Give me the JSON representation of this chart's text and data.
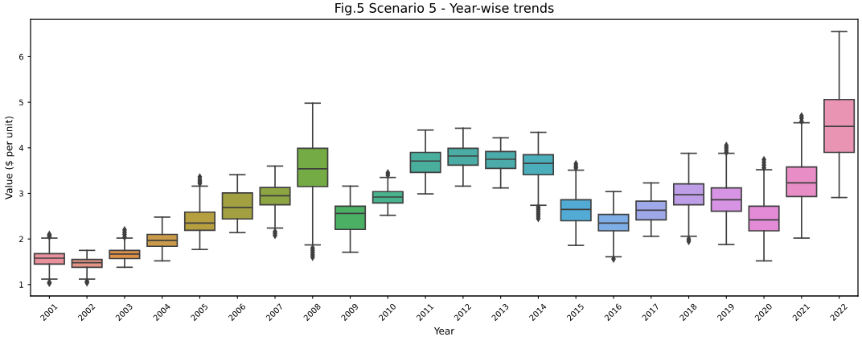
{
  "chart_data": {
    "type": "box",
    "title": "Fig.5 Scenario 5 - Year-wise trends",
    "xlabel": "Year",
    "ylabel": "Value ($ per unit)",
    "categories": [
      "2001",
      "2002",
      "2003",
      "2004",
      "2005",
      "2006",
      "2007",
      "2008",
      "2009",
      "2010",
      "2011",
      "2012",
      "2013",
      "2014",
      "2015",
      "2016",
      "2017",
      "2018",
      "2019",
      "2020",
      "2021",
      "2022"
    ],
    "colors": [
      "#e8919c",
      "#e59487",
      "#dc9048",
      "#c99b4a",
      "#b59f40",
      "#a2a040",
      "#8ea543",
      "#74ab45",
      "#4bb064",
      "#49b38e",
      "#49ae9c",
      "#4aaca4",
      "#4babab",
      "#4caeba",
      "#52abd4",
      "#7faee6",
      "#9fa8e8",
      "#bf9ee8",
      "#d794e4",
      "#e48bd8",
      "#e88dc6",
      "#e894b2"
    ],
    "boxes": [
      {
        "low": 1.12,
        "q1": 1.45,
        "median": 1.58,
        "q3": 1.68,
        "high": 2.02,
        "outliers": [
          2.05,
          2.08,
          2.1,
          1.03,
          1.05
        ]
      },
      {
        "low": 1.12,
        "q1": 1.38,
        "median": 1.48,
        "q3": 1.55,
        "high": 1.75,
        "outliers": [
          1.04,
          1.07
        ]
      },
      {
        "low": 1.38,
        "q1": 1.57,
        "median": 1.67,
        "q3": 1.75,
        "high": 2.02,
        "outliers": [
          2.04,
          2.1,
          2.15,
          2.2
        ]
      },
      {
        "low": 1.52,
        "q1": 1.84,
        "median": 1.97,
        "q3": 2.1,
        "high": 2.48
      },
      {
        "low": 1.77,
        "q1": 2.19,
        "median": 2.35,
        "q3": 2.59,
        "high": 3.16,
        "outliers": [
          3.22,
          3.26,
          3.3,
          3.36
        ]
      },
      {
        "low": 2.14,
        "q1": 2.44,
        "median": 2.69,
        "q3": 3.01,
        "high": 3.41
      },
      {
        "low": 2.24,
        "q1": 2.75,
        "median": 2.95,
        "q3": 3.13,
        "high": 3.6,
        "outliers": [
          2.08,
          2.12,
          2.16
        ]
      },
      {
        "low": 1.87,
        "q1": 3.15,
        "median": 3.54,
        "q3": 3.99,
        "high": 4.98,
        "outliers": [
          1.6,
          1.65,
          1.7,
          1.75,
          1.8
        ]
      },
      {
        "low": 1.71,
        "q1": 2.21,
        "median": 2.56,
        "q3": 2.72,
        "high": 3.16
      },
      {
        "low": 2.52,
        "q1": 2.79,
        "median": 2.92,
        "q3": 3.04,
        "high": 3.35,
        "outliers": [
          3.4,
          3.45
        ]
      },
      {
        "low": 2.99,
        "q1": 3.46,
        "median": 3.71,
        "q3": 3.9,
        "high": 4.39
      },
      {
        "low": 3.16,
        "q1": 3.62,
        "median": 3.82,
        "q3": 3.99,
        "high": 4.43
      },
      {
        "low": 3.12,
        "q1": 3.55,
        "median": 3.75,
        "q3": 3.92,
        "high": 4.22
      },
      {
        "low": 2.74,
        "q1": 3.41,
        "median": 3.66,
        "q3": 3.85,
        "high": 4.34,
        "outliers": [
          2.45,
          2.5,
          2.55,
          2.6,
          2.65,
          2.7
        ]
      },
      {
        "low": 1.86,
        "q1": 2.4,
        "median": 2.65,
        "q3": 2.86,
        "high": 3.51,
        "outliers": [
          3.56,
          3.6,
          3.65
        ]
      },
      {
        "low": 1.61,
        "q1": 2.18,
        "median": 2.35,
        "q3": 2.54,
        "high": 3.04,
        "outliers": [
          1.56
        ]
      },
      {
        "low": 2.06,
        "q1": 2.42,
        "median": 2.63,
        "q3": 2.83,
        "high": 3.23
      },
      {
        "low": 2.06,
        "q1": 2.75,
        "median": 2.97,
        "q3": 3.21,
        "high": 3.88,
        "outliers": [
          1.95,
          2.0
        ]
      },
      {
        "low": 1.88,
        "q1": 2.61,
        "median": 2.86,
        "q3": 3.12,
        "high": 3.88,
        "outliers": [
          3.9,
          3.95,
          4.0,
          4.05
        ]
      },
      {
        "low": 1.52,
        "q1": 2.18,
        "median": 2.42,
        "q3": 2.72,
        "high": 3.52,
        "outliers": [
          3.56,
          3.62,
          3.68,
          3.74
        ]
      },
      {
        "low": 2.02,
        "q1": 2.93,
        "median": 3.23,
        "q3": 3.58,
        "high": 4.55,
        "outliers": [
          4.58,
          4.65,
          4.7
        ]
      },
      {
        "low": 2.91,
        "q1": 3.9,
        "median": 4.47,
        "q3": 5.06,
        "high": 6.55
      }
    ],
    "ylim": [
      0.75,
      6.82
    ],
    "yticks": [
      1,
      2,
      3,
      4,
      5,
      6
    ]
  }
}
